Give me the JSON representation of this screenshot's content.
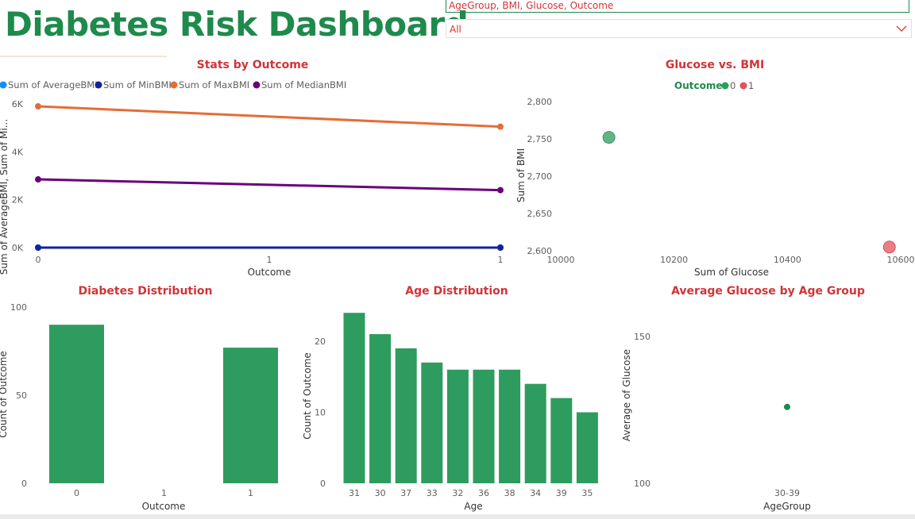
{
  "dashboard": {
    "title": "Diabetes Risk Dashboard",
    "slicer_fields": "AgeGroup, BMI, Glucose, Outcome",
    "dropdown_value": "All",
    "accent_green": "#2e9c5e",
    "title_red": "#d13438"
  },
  "chart_data": [
    {
      "type": "line",
      "title": "Stats by Outcome",
      "xlabel": "Outcome",
      "ylabel": "Sum of AverageBMI, Sum of Mi...",
      "x": [
        0,
        1
      ],
      "x_ticks": [
        "0",
        "1",
        "1"
      ],
      "y_ticks": [
        "0K",
        "2K",
        "4K",
        "6K"
      ],
      "ylim": [
        0,
        6000
      ],
      "series": [
        {
          "name": "Sum of AverageBMI",
          "color": "#118dff",
          "values": [
            0,
            0
          ]
        },
        {
          "name": "Sum of MinBMI",
          "color": "#12239e",
          "values": [
            0,
            0
          ]
        },
        {
          "name": "Sum of MaxBMI",
          "color": "#e66c37",
          "values": [
            5900,
            5050
          ]
        },
        {
          "name": "Sum of MedianBMI",
          "color": "#6b007b",
          "values": [
            2850,
            2400
          ]
        }
      ]
    },
    {
      "type": "scatter",
      "title": "Glucose vs. BMI",
      "xlabel": "Sum of Glucose",
      "ylabel": "Sum of BMI",
      "legend_title": "Outcome",
      "x_ticks": [
        "10000",
        "10200",
        "10400",
        "10600"
      ],
      "y_ticks": [
        "2,600",
        "2,650",
        "2,700",
        "2,750",
        "2,800"
      ],
      "xlim": [
        10000,
        10600
      ],
      "ylim": [
        2600,
        2800
      ],
      "series": [
        {
          "name": "0",
          "color": "#2e9c5e",
          "points": [
            {
              "x": 10085,
              "y": 2752
            }
          ]
        },
        {
          "name": "1",
          "color": "#e0545b",
          "points": [
            {
              "x": 10580,
              "y": 2605
            }
          ]
        }
      ]
    },
    {
      "type": "bar",
      "title": "Diabetes Distribution",
      "xlabel": "Outcome",
      "ylabel": "Count of Outcome",
      "categories": [
        "0",
        "1",
        "1"
      ],
      "values": [
        90,
        0,
        77
      ],
      "y_ticks": [
        "0",
        "50",
        "100"
      ],
      "ylim": [
        0,
        100
      ],
      "color": "#2e9c5e"
    },
    {
      "type": "bar",
      "title": "Age Distribution",
      "xlabel": "Age",
      "ylabel": "Count of Outcome",
      "categories": [
        "31",
        "30",
        "37",
        "33",
        "32",
        "36",
        "38",
        "34",
        "39",
        "35"
      ],
      "values": [
        24,
        21,
        19,
        17,
        16,
        16,
        16,
        14,
        12,
        10
      ],
      "y_ticks": [
        "0",
        "10",
        "20"
      ],
      "ylim": [
        0,
        20
      ],
      "color": "#2e9c5e"
    },
    {
      "type": "scatter",
      "title": "Average Glucose by Age Group",
      "xlabel": "AgeGroup",
      "ylabel": "Average of Glucose",
      "categories": [
        "30-39"
      ],
      "values": [
        126
      ],
      "y_ticks": [
        "100",
        "150"
      ],
      "ylim": [
        100,
        150
      ],
      "color": "#1e8a4c"
    }
  ]
}
